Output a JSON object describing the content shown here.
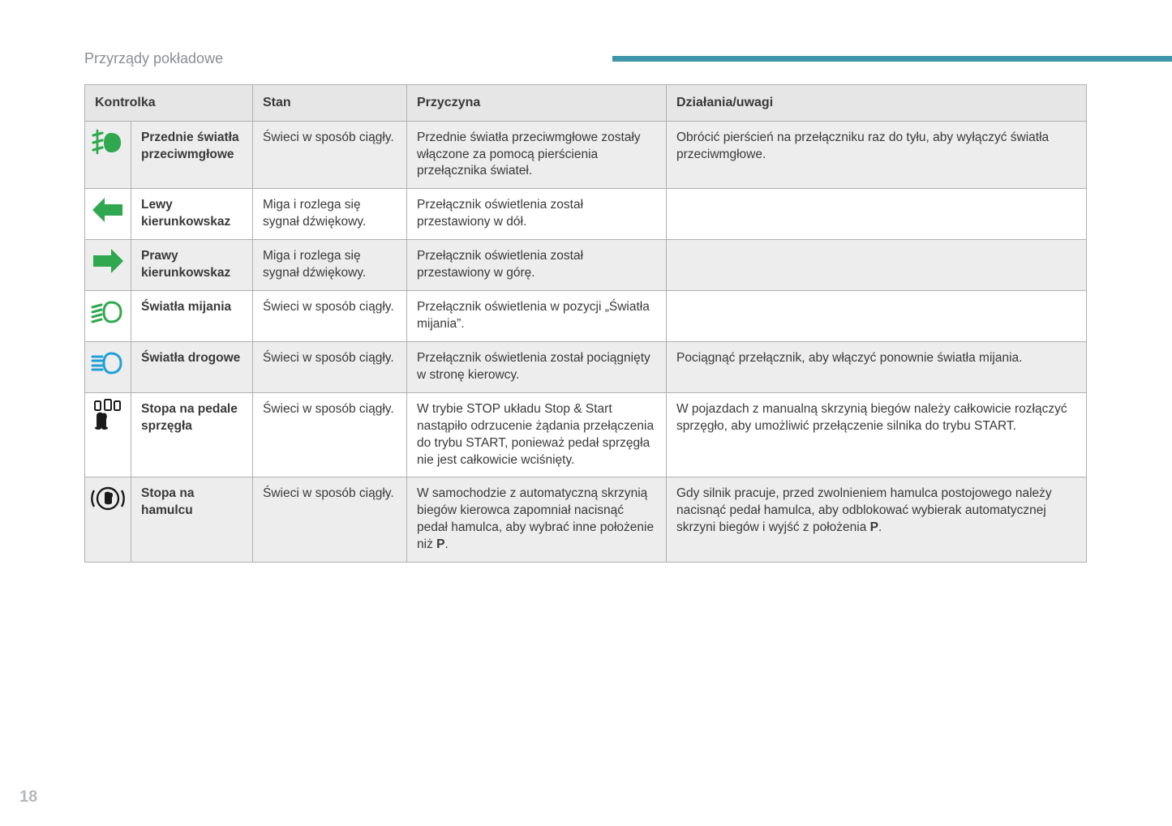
{
  "section_title": "Przyrządy pokładowe",
  "page_number": "18",
  "header_bar_color": "#3e94a8",
  "table": {
    "headers": {
      "c1": "Kontrolka",
      "c2": "Stan",
      "c3": "Przyczyna",
      "c4": "Działania/uwagi"
    },
    "rows": [
      {
        "icon": "front-fog-light",
        "icon_color": "#2fa84f",
        "label": "Przednie światła przeciwmgłowe",
        "state": "Świeci w sposób ciągły.",
        "cause": "Przednie światła przeciwmgłowe zostały włączone za pomocą pierścienia przełącznika świateł.",
        "action": "Obrócić pierścień na przełączniku raz do tyłu, aby wyłączyć światła przeciwmgłowe."
      },
      {
        "icon": "left-arrow",
        "icon_color": "#2fa84f",
        "label": "Lewy kierunkowskaz",
        "state": "Miga i rozlega się sygnał dźwiękowy.",
        "cause": "Przełącznik oświetlenia został przestawiony w dół.",
        "action": ""
      },
      {
        "icon": "right-arrow",
        "icon_color": "#2fa84f",
        "label": "Prawy kierunkowskaz",
        "state": "Miga i rozlega się sygnał dźwiękowy.",
        "cause": "Przełącznik oświetlenia został przestawiony w górę.",
        "action": ""
      },
      {
        "icon": "low-beam",
        "icon_color": "#2fa84f",
        "label": "Światła mijania",
        "state": "Świeci w sposób ciągły.",
        "cause": "Przełącznik oświetlenia w pozycji „Światła mijania”.",
        "action": ""
      },
      {
        "icon": "high-beam",
        "icon_color": "#1ea0d6",
        "label": "Światła drogowe",
        "state": "Świeci w sposób ciągły.",
        "cause": "Przełącznik oświetlenia został pociągnięty w stronę kierowcy.",
        "action": "Pociągnąć przełącznik, aby włączyć ponownie światła mijania."
      },
      {
        "icon": "clutch-pedal",
        "icon_color": "#1a1a1a",
        "label": "Stopa na pedale sprzęgła",
        "state": "Świeci w sposób ciągły.",
        "cause": "W trybie STOP układu Stop & Start nastąpiło odrzucenie żądania przełączenia do trybu START, ponieważ pedał sprzęgła nie jest całkowicie wciśnięty.",
        "action": "W pojazdach z manualną skrzynią biegów należy całkowicie rozłączyć sprzęgło, aby umożliwić przełączenie silnika do trybu START."
      },
      {
        "icon": "brake-foot",
        "icon_color": "#1a1a1a",
        "label": "Stopa na hamulcu",
        "state": "Świeci w sposób ciągły.",
        "cause_html": "W samochodzie z automatyczną skrzynią biegów kierowca zapomniał nacisnąć pedał hamulca, aby wybrać inne położenie niż <b>P</b>.",
        "action_html": "Gdy silnik pracuje, przed zwolnieniem hamulca postojowego należy nacisnąć pedał hamulca, aby odblokować wybierak automatycznej skrzyni biegów i wyjść z położenia <b>P</b>."
      }
    ]
  },
  "icons_svg": {
    "front-fog-light": "<svg viewBox='0 0 44 40'><g fill='none' stroke='COLOR' stroke-width='3.2' stroke-linecap='round'><path d='M26 8 C20 8 17 13 17 20 C17 27 20 32 26 32 C34 32 38 27 38 20 C38 13 34 8 26 8 Z' fill='COLOR' stroke='none'/><line x1='4' y1='11' x2='15' y2='8'/><line x1='4' y1='20' x2='15' y2='17'/><line x1='4' y1='29' x2='15' y2='26'/><line x1='9' y1='5' x2='9' y2='33' stroke-width='2.8'/></g></svg>",
    "left-arrow": "<svg viewBox='0 0 44 40'><polygon points='40,13 18,13 18,5 3,20 18,35 18,27 40,27' fill='COLOR'/></svg>",
    "right-arrow": "<svg viewBox='0 0 44 40'><polygon points='4,13 26,13 26,5 41,20 26,35 26,27 4,27' fill='COLOR'/></svg>",
    "low-beam": "<svg viewBox='0 0 44 40'><g fill='none' stroke='COLOR' stroke-width='3' stroke-linecap='round'><path d='M26 8 C20 8 17 13 17 20 C17 27 20 32 26 32 C34 32 38 27 38 20 C38 13 34 8 26 8 Z' fill='none' stroke='COLOR'/><line x1='3' y1='14' x2='14' y2='11'/><line x1='3' y1='20' x2='14' y2='17'/><line x1='3' y1='26' x2='14' y2='23'/><line x1='3' y1='32' x2='14' y2='29'/></g></svg>",
    "high-beam": "<svg viewBox='0 0 44 40'><g fill='none' stroke='COLOR' stroke-width='3' stroke-linecap='round'><path d='M26 8 C20 8 17 13 17 20 C17 27 20 32 26 32 C34 32 38 27 38 20 C38 13 34 8 26 8 Z' fill='none' stroke='COLOR'/><line x1='3' y1='12' x2='15' y2='12'/><line x1='3' y1='17' x2='15' y2='17'/><line x1='3' y1='23' x2='15' y2='23'/><line x1='3' y1='28' x2='15' y2='28'/></g></svg>",
    "clutch-pedal": "<svg viewBox='0 0 44 40'><g fill='COLOR'><rect x='6' y='4' width='7' height='11' rx='1.5' fill='none' stroke='COLOR' stroke-width='2'/><rect x='18' y='2' width='8' height='13' rx='1.5' fill='none' stroke='COLOR' stroke-width='2'/><rect x='30' y='4' width='7' height='11' rx='1.5' fill='none' stroke='COLOR' stroke-width='2'/><path d='M8 22 C8 17 14 17 16 19 C20 17 22 22 20 26 L20 34 C20 37 8 37 8 34 Z'/><ellipse cx='10' cy='37' rx='4' ry='2'/><ellipse cx='18' cy='37' rx='4' ry='2'/></g></svg>",
    "brake-foot": "<svg viewBox='0 0 44 40'><g fill='none' stroke='COLOR' stroke-width='2.4'><circle cx='22' cy='20' r='13'/><path d='M5 10 A20 20 0 0 0 5 30' /><path d='M39 10 A20 20 0 0 1 39 30' /><path d='M18 14 C18 11 24 11 25 13 C28 12 29 16 27 19 L27 25 C27 28 18 28 18 25 Z' fill='COLOR' stroke='none'/></g></svg>"
  }
}
